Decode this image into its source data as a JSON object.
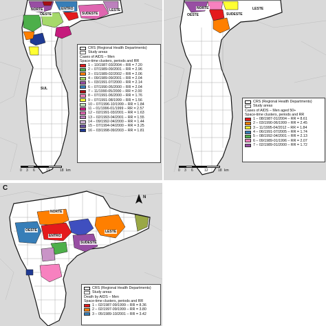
{
  "panels": [
    {
      "id": "A",
      "letter": "",
      "regions": [
        "NORTE",
        "ENTRO",
        "OESTE",
        "SUDESTE",
        "LESTE",
        "SUL"
      ],
      "legend": {
        "crs_label": "CRS (Regional Health Departments)",
        "study_label": "Study areas",
        "title_line1": "Cases of AIDS – Men",
        "title_line2": "Space-time clusters, periods and RR",
        "entries": [
          {
            "text": "1 – 10/1987-03/2004 – RR = 7.20",
            "color": "#e41a1c"
          },
          {
            "text": "2 – 07/1989-09/2001 – RR = 2.96",
            "color": "#4daf4a"
          },
          {
            "text": "3 – 01/1989-02/2002 – RR = 2.06",
            "color": "#ff7f00"
          },
          {
            "text": "4 – 09/1989-09/2001 – RR = 2.04",
            "color": "#a6d96a"
          },
          {
            "text": "5 – 03/1991-07/2000 – RR = 2.14",
            "color": "#984ea3"
          },
          {
            "text": "6 – 07/1990-05/2000 – RR = 2.04",
            "color": "#377eb8"
          },
          {
            "text": "7 – 11/1990-05/2000 – RR = 2.00",
            "color": "#a50f15"
          },
          {
            "text": "8 – 07/1991-06/2000 – RR = 1.76",
            "color": "#f781bf"
          },
          {
            "text": "9 – 07/1991-08/1999 – RR = 1.56",
            "color": "#ffff33"
          },
          {
            "text": "10 – 07/1996-10/1999 – RR = 1.84",
            "color": "#c7e9c0"
          },
          {
            "text": "11 – 01/1996-01/1999 – RR = 2.57",
            "color": "#c51b7d"
          },
          {
            "text": "12 – 02/1991-03/2001 – RR = 1.63",
            "color": "#df65b0"
          },
          {
            "text": "13 – 02/1993-04/2001 – RR = 1.55",
            "color": "#bc80bd"
          },
          {
            "text": "14 – 09/1992-04/2000 – RR = 1.44",
            "color": "#d4b9da"
          },
          {
            "text": "15 – 07/1994-04/2000 – RR = 3.25",
            "color": "#6a51a3"
          },
          {
            "text": "16 – 03/1998-09/2003 – RR = 1.81",
            "color": "#1f3a93"
          }
        ]
      },
      "scale": {
        "ticks": [
          "0",
          "3",
          "6",
          "12",
          "18"
        ],
        "unit": "km"
      }
    },
    {
      "id": "B",
      "letter": "",
      "regions": [
        "NORTE",
        "OESTE",
        "SUDESTE",
        "LESTE"
      ],
      "legend": {
        "crs_label": "CRS (Regional Health Departments)",
        "study_label": "Study areas",
        "title_line1": "Cases of AIDS – Men aged 50+",
        "title_line2": "Space-time clusters, periods and RR",
        "entries": [
          {
            "text": "1 – 08/1987-01/2004 – RR = 8.61",
            "color": "#e41a1c"
          },
          {
            "text": "2 – 03/1990-06/1999 – RR = 2.45",
            "color": "#ff7f00"
          },
          {
            "text": "3 – 11/1995-04/2012 – RR = 1.84",
            "color": "#ffff33"
          },
          {
            "text": "4 – 06/1991-07/2005 – RR = 1.74",
            "color": "#377eb8"
          },
          {
            "text": "5 – 08/1992-04/2001 – RR = 2.13",
            "color": "#4daf4a"
          },
          {
            "text": "6 – 09/1989-01/1996 – RR = 2.07",
            "color": "#f781bf"
          },
          {
            "text": "7 – 02/1989-01/2000 – RR = 1.72",
            "color": "#984ea3"
          }
        ]
      },
      "scale": {
        "ticks": [
          "0",
          "3",
          "6",
          "12",
          "18"
        ],
        "unit": "km"
      }
    },
    {
      "id": "C",
      "letter": "C",
      "regions": [
        "NORTE",
        "OESTE",
        "ENTRO",
        "SUDESTE",
        "LESTE"
      ],
      "north": "N",
      "legend": {
        "crs_label": "CRS (Regional Health Departments)",
        "study_label": "Study areas",
        "title_line1": "Death by AIDS – Men",
        "title_line2": "Space-time clusters, periods and RR",
        "entries": [
          {
            "text": "1 – 02/1987-09/1999 – RR = 8.36",
            "color": "#e41a1c"
          },
          {
            "text": "2 – 02/1997-09/1999 – RR = 3.80",
            "color": "#ff7f00"
          },
          {
            "text": "3 – 05/1989-10/2001 – RR = 3.42",
            "color": "#377eb8"
          }
        ]
      }
    }
  ]
}
